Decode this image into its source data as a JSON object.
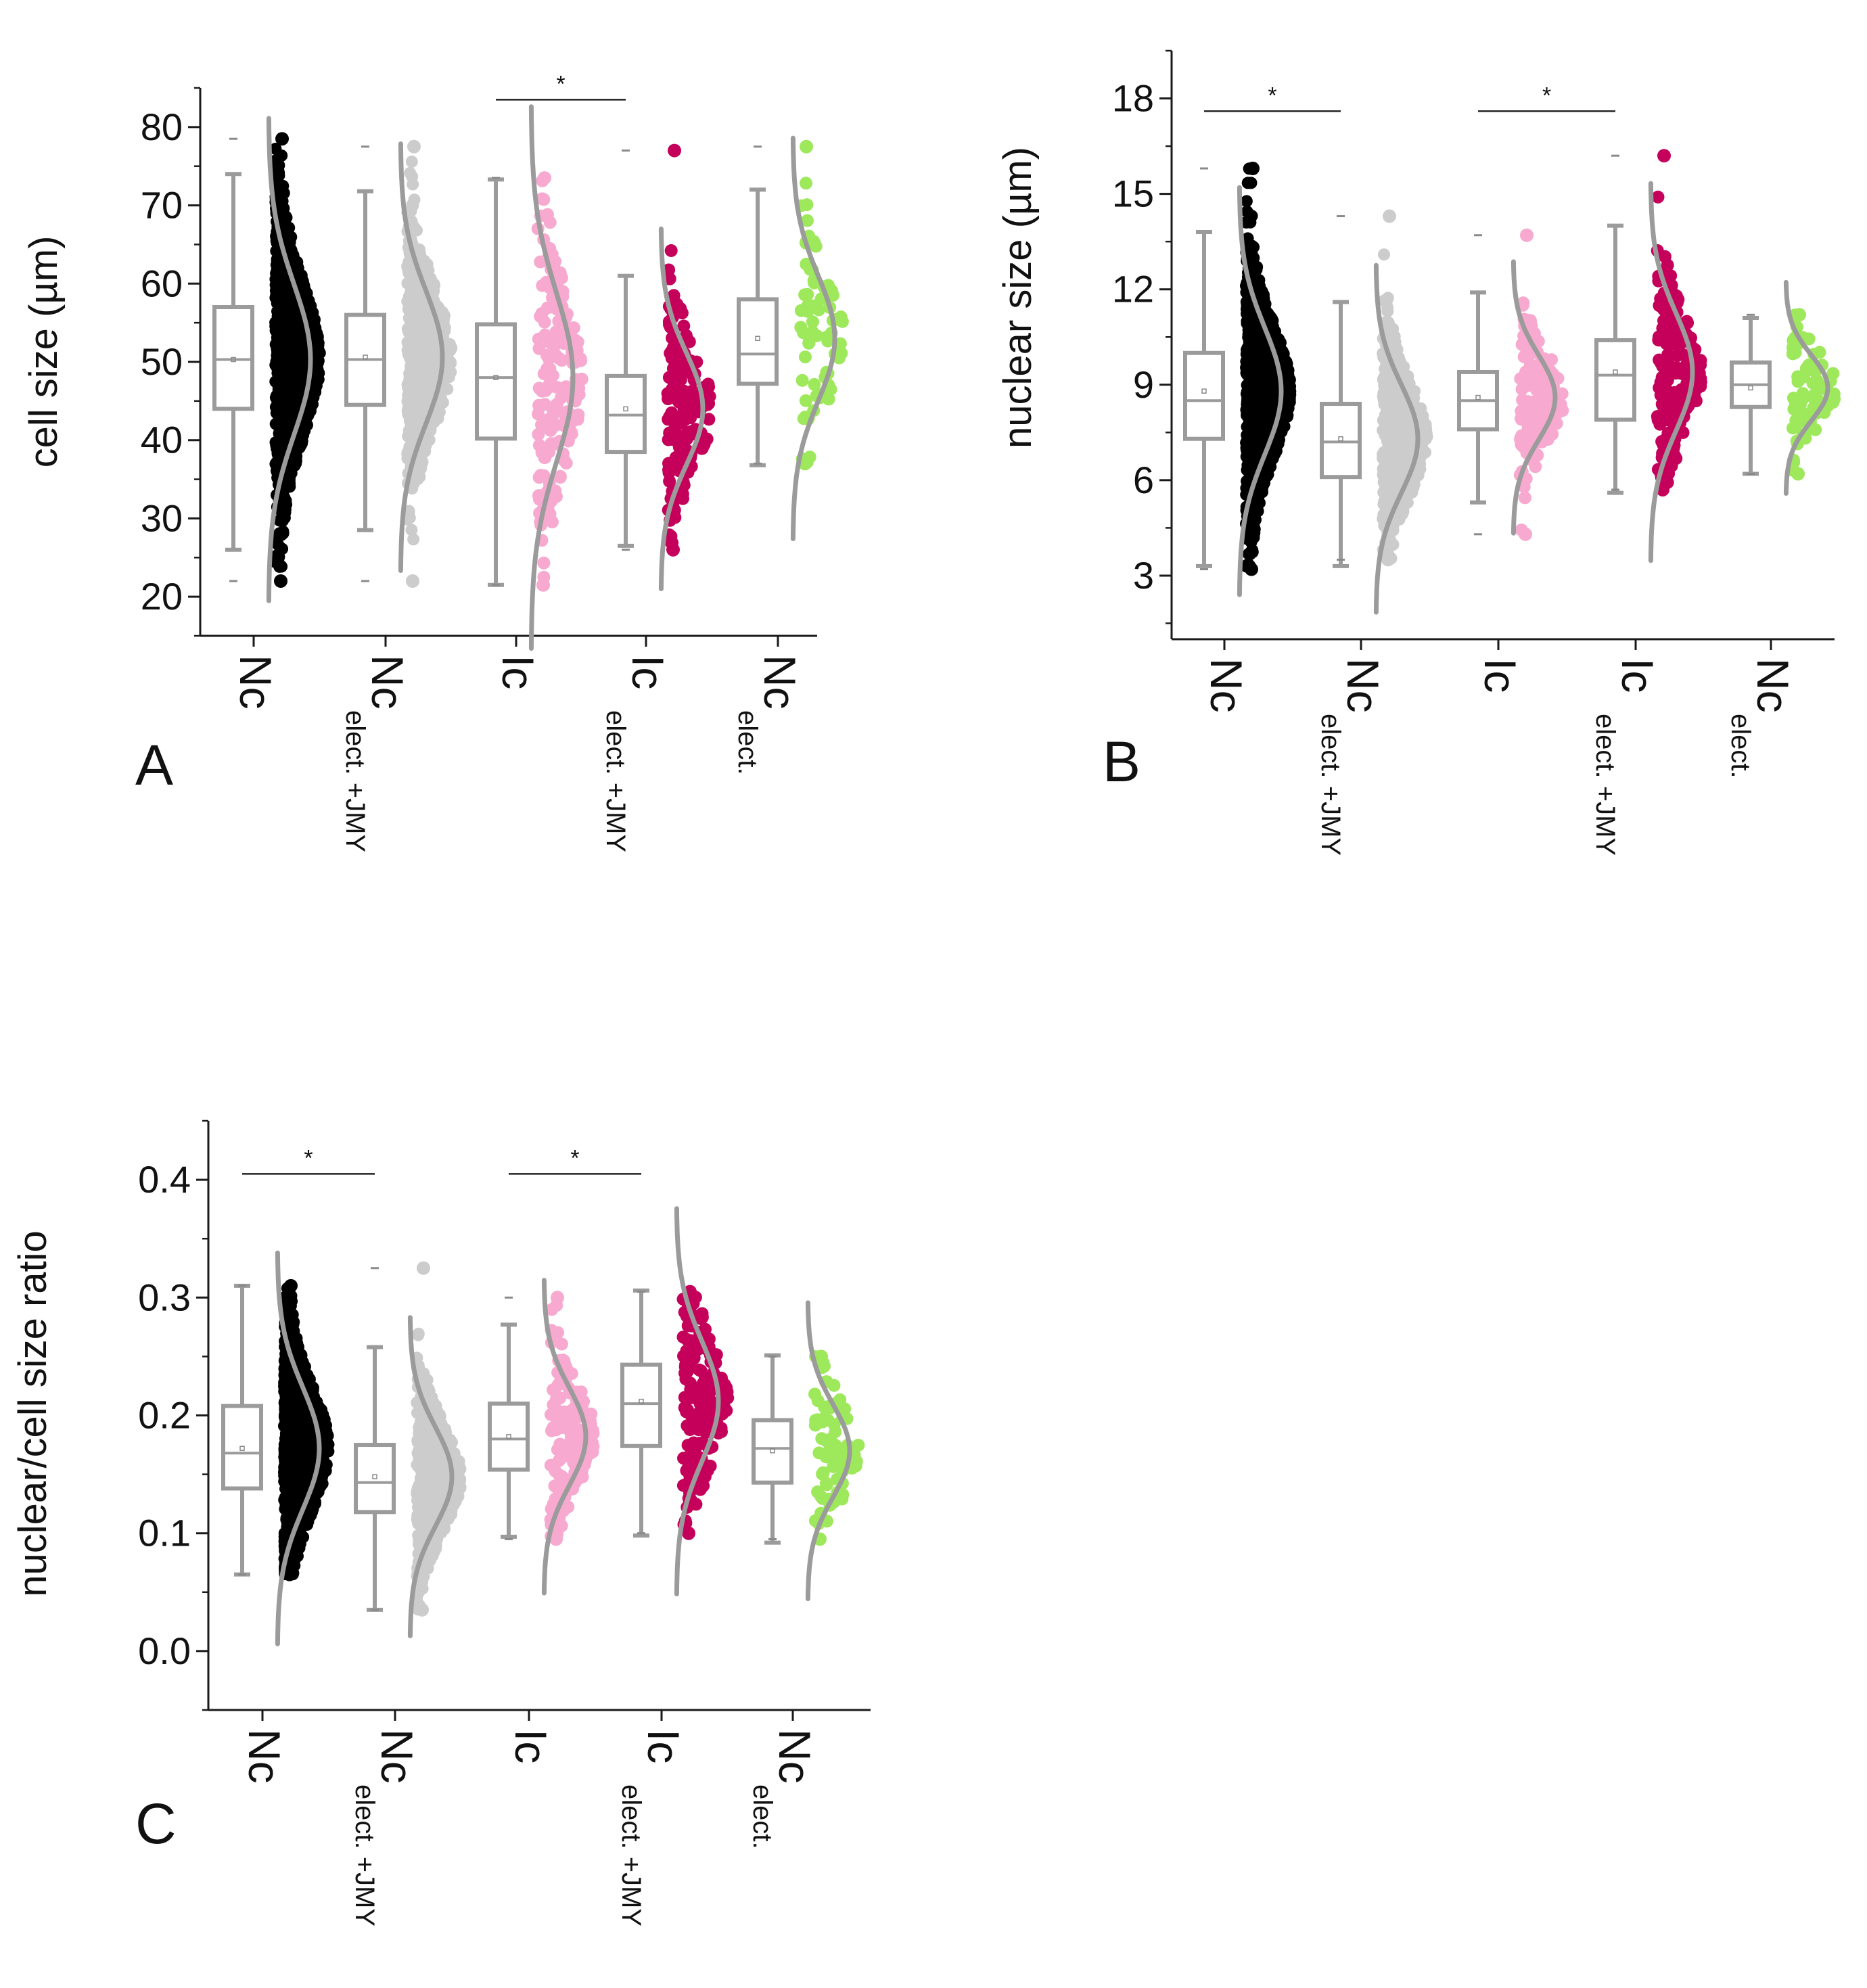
{
  "figure": {
    "significance_marker": "*",
    "colors": {
      "axis": "#1a1a1a",
      "box": "#9b9b9b",
      "curve": "#9b9b9b",
      "series": {
        "Nc": "#000000",
        "Nc_elect_JMY": "#cccccc",
        "Ic": "#f7a9d0",
        "Ic_elect_JMY": "#c4005a",
        "Nc_elect": "#9ee85c"
      }
    }
  },
  "chart_data": [
    {
      "panel": "A",
      "type": "box",
      "ylabel": "cell size (µm)",
      "ylim": [
        15,
        85
      ],
      "yticks": [
        20,
        30,
        40,
        50,
        60,
        70,
        80
      ],
      "categories": [
        {
          "main": "Nc",
          "sub": ""
        },
        {
          "main": "Nc",
          "sub": "elect. +JMY"
        },
        {
          "main": "Ic",
          "sub": ""
        },
        {
          "main": "Ic",
          "sub": "elect. +JMY"
        },
        {
          "main": "Nc",
          "sub": "elect."
        }
      ],
      "series": [
        {
          "name": "Nc",
          "color_key": "Nc",
          "min": 26,
          "q1": 44,
          "median": 50.3,
          "q3": 57,
          "max": 74,
          "mean": 50.3,
          "n_points": 1200,
          "pt_min": 22,
          "pt_max": 78.5
        },
        {
          "name": "Nc elect. +JMY",
          "color_key": "Nc_elect_JMY",
          "min": 28.5,
          "q1": 44.5,
          "median": 50.3,
          "q3": 56,
          "max": 71.8,
          "mean": 50.6,
          "n_points": 520,
          "pt_min": 22,
          "pt_max": 77.5
        },
        {
          "name": "Ic",
          "color_key": "Ic",
          "min": 21.5,
          "q1": 40.2,
          "median": 48,
          "q3": 54.8,
          "max": 73.3,
          "mean": 48,
          "n_points": 160,
          "pt_min": 21.5,
          "pt_max": 73.5
        },
        {
          "name": "Ic elect. +JMY",
          "color_key": "Ic_elect_JMY",
          "min": 26.5,
          "q1": 38.5,
          "median": 43.2,
          "q3": 48.2,
          "max": 61,
          "mean": 44,
          "n_points": 170,
          "pt_min": 26,
          "pt_max": 77
        },
        {
          "name": "Nc elect.",
          "color_key": "Nc_elect",
          "min": 36.8,
          "q1": 47.2,
          "median": 51,
          "q3": 58,
          "max": 72,
          "mean": 53,
          "n_points": 70,
          "pt_min": 37,
          "pt_max": 77.5
        }
      ],
      "significance": [
        {
          "from": 2,
          "to": 3,
          "y": 83.5,
          "label": "*"
        }
      ]
    },
    {
      "panel": "B",
      "type": "box",
      "ylabel": "nuclear size (µm)",
      "ylim": [
        1,
        19.5
      ],
      "yticks": [
        3,
        6,
        9,
        12,
        15,
        18
      ],
      "categories": [
        {
          "main": "Nc",
          "sub": ""
        },
        {
          "main": "Nc",
          "sub": "elect. +JMY"
        },
        {
          "main": "Ic",
          "sub": ""
        },
        {
          "main": "Ic",
          "sub": "elect. +JMY"
        },
        {
          "main": "Nc",
          "sub": "elect."
        }
      ],
      "series": [
        {
          "name": "Nc",
          "color_key": "Nc",
          "min": 3.3,
          "q1": 7.3,
          "median": 8.5,
          "q3": 10,
          "max": 13.8,
          "mean": 8.8,
          "n_points": 1200,
          "pt_min": 3.2,
          "pt_max": 15.8
        },
        {
          "name": "Nc elect. +JMY",
          "color_key": "Nc_elect_JMY",
          "min": 3.3,
          "q1": 6.1,
          "median": 7.2,
          "q3": 8.4,
          "max": 11.6,
          "mean": 7.3,
          "n_points": 520,
          "pt_min": 3.5,
          "pt_max": 14.3
        },
        {
          "name": "Ic",
          "color_key": "Ic",
          "min": 5.3,
          "q1": 7.6,
          "median": 8.5,
          "q3": 9.4,
          "max": 11.9,
          "mean": 8.6,
          "n_points": 160,
          "pt_min": 4.3,
          "pt_max": 13.7
        },
        {
          "name": "Ic elect. +JMY",
          "color_key": "Ic_elect_JMY",
          "min": 5.6,
          "q1": 7.9,
          "median": 9.3,
          "q3": 10.4,
          "max": 14,
          "mean": 9.4,
          "n_points": 170,
          "pt_min": 5.7,
          "pt_max": 16.2
        },
        {
          "name": "Nc elect.",
          "color_key": "Nc_elect",
          "min": 6.2,
          "q1": 8.3,
          "median": 9,
          "q3": 9.7,
          "max": 11.1,
          "mean": 8.9,
          "n_points": 70,
          "pt_min": 6.2,
          "pt_max": 11.2
        }
      ],
      "significance": [
        {
          "from": 0,
          "to": 1,
          "y": 17.6,
          "label": "*"
        },
        {
          "from": 2,
          "to": 3,
          "y": 17.6,
          "label": "*"
        }
      ]
    },
    {
      "panel": "C",
      "type": "box",
      "ylabel": "nuclear/cell size ratio",
      "ylim": [
        -0.05,
        0.45
      ],
      "yticks": [
        0.0,
        0.1,
        0.2,
        0.3,
        0.4
      ],
      "categories": [
        {
          "main": "Nc",
          "sub": ""
        },
        {
          "main": "Nc",
          "sub": "elect. +JMY"
        },
        {
          "main": "Ic",
          "sub": ""
        },
        {
          "main": "Ic",
          "sub": "elect. +JMY"
        },
        {
          "main": "Nc",
          "sub": "elect."
        }
      ],
      "series": [
        {
          "name": "Nc",
          "color_key": "Nc",
          "min": 0.065,
          "q1": 0.138,
          "median": 0.168,
          "q3": 0.208,
          "max": 0.31,
          "mean": 0.172,
          "n_points": 1200,
          "pt_min": 0.065,
          "pt_max": 0.31
        },
        {
          "name": "Nc elect. +JMY",
          "color_key": "Nc_elect_JMY",
          "min": 0.035,
          "q1": 0.118,
          "median": 0.143,
          "q3": 0.175,
          "max": 0.258,
          "mean": 0.148,
          "n_points": 520,
          "pt_min": 0.035,
          "pt_max": 0.325
        },
        {
          "name": "Ic",
          "color_key": "Ic",
          "min": 0.097,
          "q1": 0.154,
          "median": 0.18,
          "q3": 0.21,
          "max": 0.277,
          "mean": 0.182,
          "n_points": 160,
          "pt_min": 0.095,
          "pt_max": 0.3
        },
        {
          "name": "Ic elect. +JMY",
          "color_key": "Ic_elect_JMY",
          "min": 0.098,
          "q1": 0.174,
          "median": 0.21,
          "q3": 0.243,
          "max": 0.306,
          "mean": 0.212,
          "n_points": 170,
          "pt_min": 0.1,
          "pt_max": 0.305
        },
        {
          "name": "Nc elect.",
          "color_key": "Nc_elect",
          "min": 0.092,
          "q1": 0.143,
          "median": 0.172,
          "q3": 0.196,
          "max": 0.251,
          "mean": 0.17,
          "n_points": 70,
          "pt_min": 0.095,
          "pt_max": 0.25
        }
      ],
      "significance": [
        {
          "from": 0,
          "to": 1,
          "y": 0.405,
          "label": "*"
        },
        {
          "from": 2,
          "to": 3,
          "y": 0.405,
          "label": "*"
        }
      ]
    }
  ]
}
